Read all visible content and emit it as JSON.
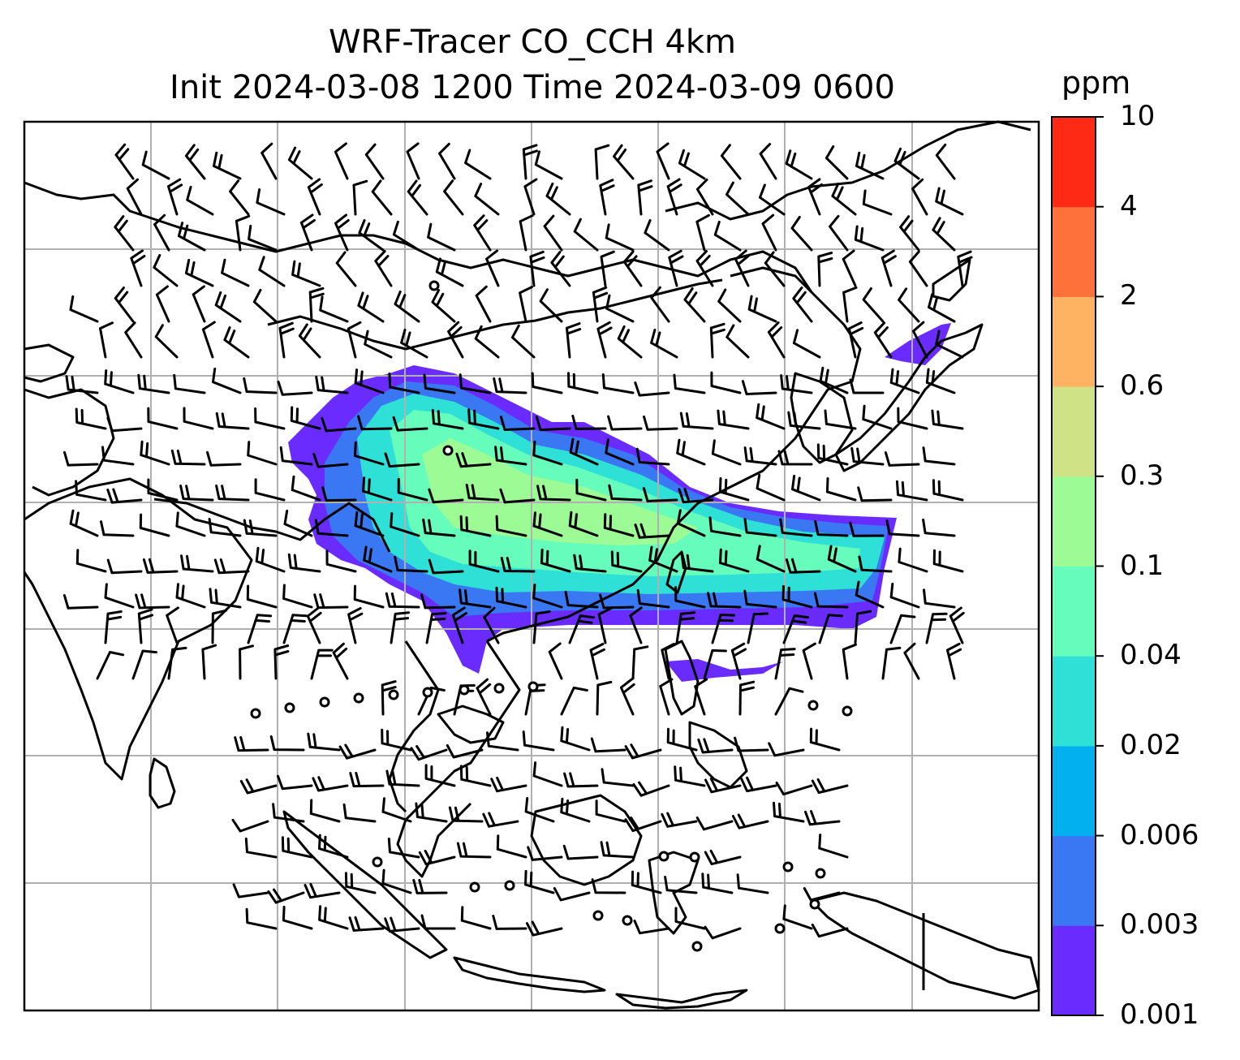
{
  "title": {
    "line1": "WRF-Tracer CO_CCH 4km",
    "line2": "Init 2024-03-08 1200 Time 2024-03-09 0600"
  },
  "colorbar": {
    "unit": "ppm",
    "levels": [
      "0.001",
      "0.003",
      "0.006",
      "0.02",
      "0.04",
      "0.1",
      "0.3",
      "0.6",
      "2",
      "4",
      "10"
    ],
    "colors": [
      "#6a2bff",
      "#3a77f2",
      "#03b0ef",
      "#2ee0d5",
      "#66fcbc",
      "#9cfb95",
      "#d0e286",
      "#fdb361",
      "#fe713b",
      "#ff2a16"
    ]
  },
  "map": {
    "region": "East and Southeast Asia",
    "background_color": "#ffffff",
    "coastline_color": "#000000",
    "gridline_color": "#b0b0b0",
    "barb_color": "#000000",
    "field": "CO_CCH tracer concentration",
    "plume_colors": {
      "edge": "#6a2bff",
      "low": "#3a77f2",
      "mid": "#2ee0d5",
      "high": "#66fcbc",
      "peak": "#9cfb95"
    }
  }
}
